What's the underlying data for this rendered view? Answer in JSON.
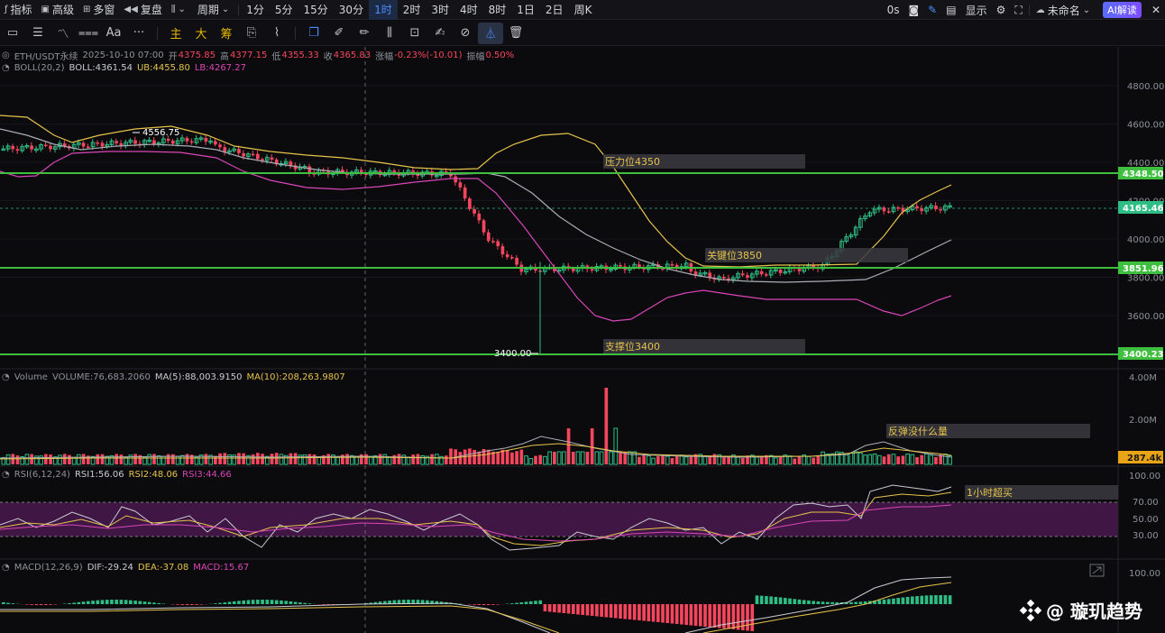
{
  "toolbar": {
    "indicators": "指标",
    "advanced": "高级",
    "multi": "多窗",
    "replay": "复盘",
    "period": "周期",
    "timeframes": [
      "1分",
      "5分",
      "15分",
      "30分",
      "1时",
      "2时",
      "3时",
      "4时",
      "8时",
      "1日",
      "2日",
      "周K"
    ],
    "active_timeframe": "1时",
    "latency": "0s",
    "display": "显示",
    "layout_name": "未命名",
    "ai": "AI解读"
  },
  "drawbar": {
    "main": "主",
    "big": "大",
    "chips": "筹",
    "text_tool": "Aa",
    "more": "···"
  },
  "header": {
    "symbol": "ETH/USDT永续",
    "datetime": "2025-10-10 07:00",
    "open_label": "开",
    "open": "4375.85",
    "high_label": "高",
    "high": "4377.15",
    "low_label": "低",
    "low": "4355.33",
    "close_label": "收",
    "close": "4365.83",
    "change_label": "涨幅",
    "change": "-0.23%(-10.01)",
    "amp_label": "振幅",
    "amp": "0.50%"
  },
  "boll": {
    "name": "BOLL(20,2)",
    "boll": "BOLL:4361.54",
    "ub": "UB:4455.80",
    "lb": "LB:4267.27"
  },
  "volume": {
    "name": "Volume",
    "vol": "VOLUME:76,683.2060",
    "ma5": "MA(5):88,003.9150",
    "ma10": "MA(10):208,263.9807"
  },
  "rsi": {
    "name": "RSI(6,12,24)",
    "rsi1": "RSI1:56.06",
    "rsi2": "RSI2:48.06",
    "rsi3": "RSI3:44.66"
  },
  "macd": {
    "name": "MACD(12,26,9)",
    "dif": "DIF:-29.24",
    "dea": "DEA:-37.08",
    "macd": "MACD:15.67"
  },
  "price_axis": [
    "4800.00",
    "4600.00",
    "4400.00",
    "4200.00",
    "4000.00",
    "3800.00",
    "3600.00"
  ],
  "price_tags": {
    "resistance": "4348.50",
    "current": "4165.46",
    "key": "3851.96",
    "support": "3400.23"
  },
  "volume_axis": [
    "4.00M",
    "2.00M"
  ],
  "volume_tag": "287.4k",
  "rsi_axis": [
    "100.00",
    "70.00",
    "50.00",
    "30.00"
  ],
  "macd_axis": [
    "100.00"
  ],
  "annotations": {
    "resistance": "压力位4350",
    "key": "关键位3850",
    "support": "支撑位3400",
    "volume": "反弹没什么量",
    "rsi": "1小时超买",
    "high_mark": "4556.75",
    "low_mark": "3400.00"
  },
  "colors": {
    "up": "#2ebd85",
    "down": "#f6465d",
    "ub": "#e5c34b",
    "mid": "#a9adb6",
    "lb": "#d946b8",
    "level": "#3fbf3f"
  },
  "watermark": "@ 璇玑趋势"
}
